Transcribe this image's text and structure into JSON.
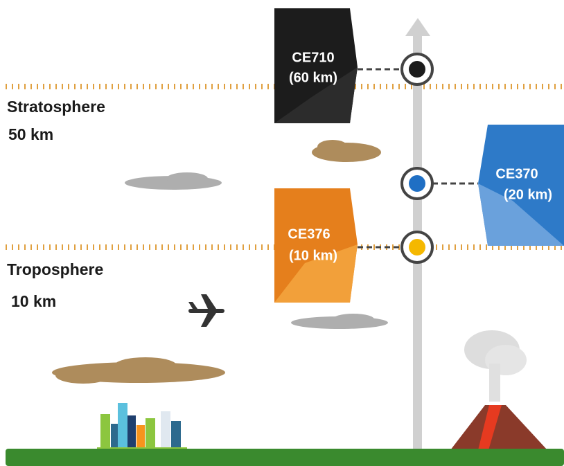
{
  "layers": [
    {
      "name": "Stratosphere",
      "height": "50 km"
    },
    {
      "name": "Troposphere",
      "height": "10 km"
    }
  ],
  "instruments": [
    {
      "model": "CE710",
      "altitude": "(60 km)"
    },
    {
      "model": "CE370",
      "altitude": "(20 km)"
    },
    {
      "model": "CE376",
      "altitude": "(10 km)"
    }
  ]
}
